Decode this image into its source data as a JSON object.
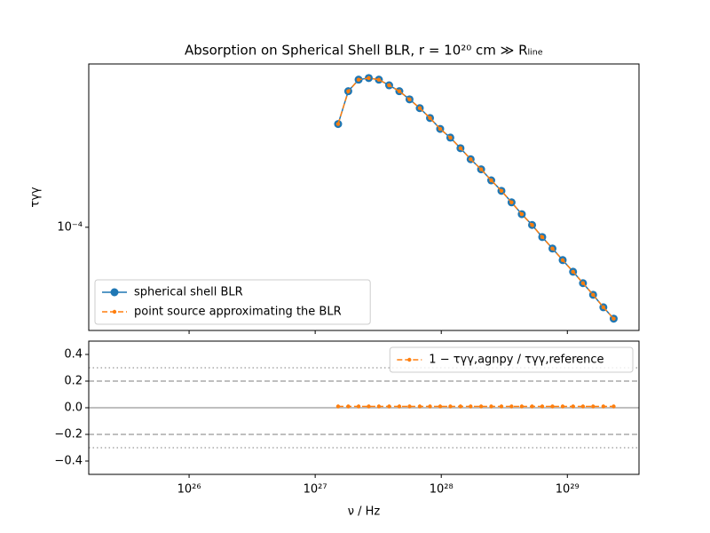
{
  "chart_data": [
    {
      "type": "line",
      "title": "Absorption on Spherical Shell BLR, r = 10²⁰ cm ≫ Rₗᵢₙₑ",
      "y_label": "τγγ",
      "log_x": true,
      "log_y": true,
      "legend": "lower left",
      "x": [
        1.52e+27,
        1.83e+27,
        2.21e+27,
        2.66e+27,
        3.2e+27,
        3.86e+27,
        4.65e+27,
        5.6e+27,
        6.75e+27,
        8.14e+27,
        9.8e+27,
        1.18e+28,
        1.42e+28,
        1.71e+28,
        2.07e+28,
        2.49e+28,
        3e+28,
        3.61e+28,
        4.35e+28,
        5.25e+28,
        6.32e+28,
        7.62e+28,
        9.18e+28,
        1.11e+29,
        1.33e+29,
        1.6e+29,
        1.93e+29,
        2.33e+29
      ],
      "series": [
        {
          "name": "spherical shell BLR",
          "color": "#1f77b4",
          "marker": "circle",
          "linestyle": "solid",
          "values": [
            0.000244,
            0.000324,
            0.000358,
            0.000363,
            0.000358,
            0.000341,
            0.000324,
            0.000302,
            0.00028,
            0.000257,
            0.000234,
            0.000217,
            0.000198,
            0.00018,
            0.000165,
            0.00015,
            0.000137,
            0.000124,
            0.000112,
            0.000102,
            9.19e-05,
            8.32e-05,
            7.53e-05,
            6.81e-05,
            6.17e-05,
            5.58e-05,
            5.01e-05,
            4.54e-05
          ]
        },
        {
          "name": "point source approximating the BLR",
          "color": "#ff7f0e",
          "marker": "dot",
          "linestyle": "dashed",
          "values": [
            0.000244,
            0.000324,
            0.000358,
            0.000363,
            0.000358,
            0.000341,
            0.000324,
            0.000302,
            0.00028,
            0.000257,
            0.000234,
            0.000217,
            0.000198,
            0.00018,
            0.000165,
            0.00015,
            0.000137,
            0.000124,
            0.000112,
            0.000102,
            9.19e-05,
            8.32e-05,
            7.53e-05,
            6.81e-05,
            6.17e-05,
            5.58e-05,
            5.01e-05,
            4.54e-05
          ]
        }
      ],
      "xlim": [
        1.6e+25,
        3.7e+29
      ],
      "xticks": [
        1e+26,
        1e+27,
        1e+28,
        1e+29
      ],
      "ylim": [
        4.1e-05,
        0.00041
      ],
      "yticks": [
        {
          "value": 0.0001,
          "label": "10⁻⁴"
        }
      ]
    },
    {
      "type": "line",
      "x_label": "ν / Hz",
      "log_x": true,
      "legend": "upper right",
      "x": [
        1.52e+27,
        1.83e+27,
        2.21e+27,
        2.66e+27,
        3.2e+27,
        3.86e+27,
        4.65e+27,
        5.6e+27,
        6.75e+27,
        8.14e+27,
        9.8e+27,
        1.18e+28,
        1.42e+28,
        1.71e+28,
        2.07e+28,
        2.49e+28,
        3e+28,
        3.61e+28,
        4.35e+28,
        5.25e+28,
        6.32e+28,
        7.62e+28,
        9.18e+28,
        1.11e+29,
        1.33e+29,
        1.6e+29,
        1.93e+29,
        2.33e+29
      ],
      "series": [
        {
          "name": "1 − τγγ,agnpy / τγγ,reference",
          "color": "#ff7f0e",
          "marker": "dot",
          "linestyle": "dashed",
          "values": [
            0.01,
            0.01,
            0.01,
            0.01,
            0.01,
            0.01,
            0.01,
            0.01,
            0.01,
            0.01,
            0.01,
            0.01,
            0.01,
            0.01,
            0.01,
            0.01,
            0.01,
            0.01,
            0.01,
            0.01,
            0.01,
            0.01,
            0.01,
            0.01,
            0.01,
            0.01,
            0.01,
            0.01
          ]
        }
      ],
      "hlines": [
        {
          "value": 0,
          "style": "solid"
        },
        {
          "value": 0.2,
          "style": "dashed"
        },
        {
          "value": -0.2,
          "style": "dashed"
        },
        {
          "value": 0.3,
          "style": "dotted"
        },
        {
          "value": -0.3,
          "style": "dotted"
        }
      ],
      "xlim": [
        1.6e+25,
        3.7e+29
      ],
      "xticks": [
        {
          "value": 1e+26,
          "label": "10²⁶"
        },
        {
          "value": 1e+27,
          "label": "10²⁷"
        },
        {
          "value": 1e+28,
          "label": "10²⁸"
        },
        {
          "value": 1e+29,
          "label": "10²⁹"
        }
      ],
      "ylim": [
        -0.5,
        0.5
      ],
      "yticks": [
        {
          "value": -0.4,
          "label": "−0.4"
        },
        {
          "value": -0.2,
          "label": "−0.2"
        },
        {
          "value": 0,
          "label": "0.0"
        },
        0.2,
        0.4
      ]
    }
  ]
}
